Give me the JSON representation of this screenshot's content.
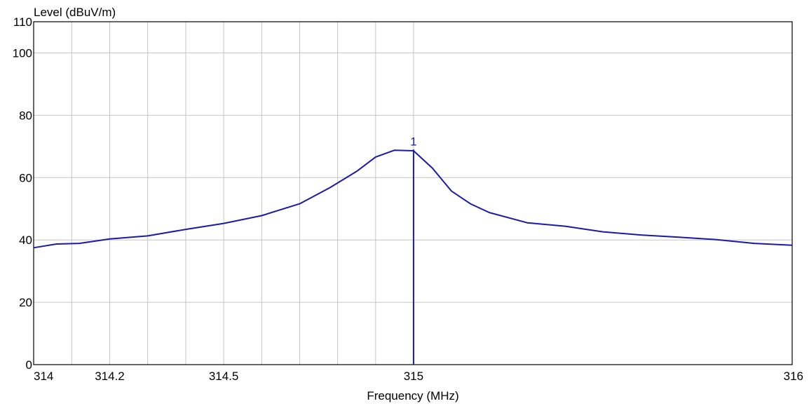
{
  "chart_data": {
    "type": "line",
    "xlabel": "Frequency (MHz)",
    "ylabel": "Level (dBuV/m)",
    "xlim": [
      314,
      316
    ],
    "ylim": [
      0,
      110
    ],
    "x_scale": "log",
    "grid": true,
    "y_ticks": [
      {
        "value": 0,
        "label": "0"
      },
      {
        "value": 20,
        "label": "20"
      },
      {
        "value": 40,
        "label": "40"
      },
      {
        "value": 60,
        "label": "60"
      },
      {
        "value": 80,
        "label": "80"
      },
      {
        "value": 100,
        "label": "100"
      },
      {
        "value": 110,
        "label": "110"
      }
    ],
    "x_ticks": [
      {
        "value": 314,
        "label": "314"
      },
      {
        "value": 314.2,
        "label": "314.2"
      },
      {
        "value": 314.5,
        "label": "314.5"
      },
      {
        "value": 315,
        "label": "315"
      },
      {
        "value": 316,
        "label": "316"
      }
    ],
    "x_gridlines": [
      314,
      314.1,
      314.2,
      314.3,
      314.4,
      314.5,
      314.6,
      314.7,
      314.8,
      314.9,
      315,
      316
    ],
    "series": [
      {
        "color": "#1a1aa6",
        "x": [
          314.0,
          314.06,
          314.12,
          314.2,
          314.3,
          314.4,
          314.5,
          314.6,
          314.7,
          314.78,
          314.85,
          314.9,
          314.95,
          315.0,
          315.05,
          315.1,
          315.15,
          315.2,
          315.3,
          315.4,
          315.5,
          315.6,
          315.7,
          315.8,
          315.9,
          316.0
        ],
        "y": [
          37.5,
          38.7,
          38.9,
          40.3,
          41.3,
          43.4,
          45.3,
          47.8,
          51.6,
          56.8,
          62.0,
          66.6,
          68.8,
          68.6,
          63.0,
          55.7,
          51.6,
          48.8,
          45.5,
          44.4,
          42.6,
          41.6,
          40.9,
          40.1,
          38.9,
          38.3
        ]
      }
    ],
    "markers": [
      {
        "label": "1",
        "x": 315.0,
        "y": 69
      }
    ]
  }
}
